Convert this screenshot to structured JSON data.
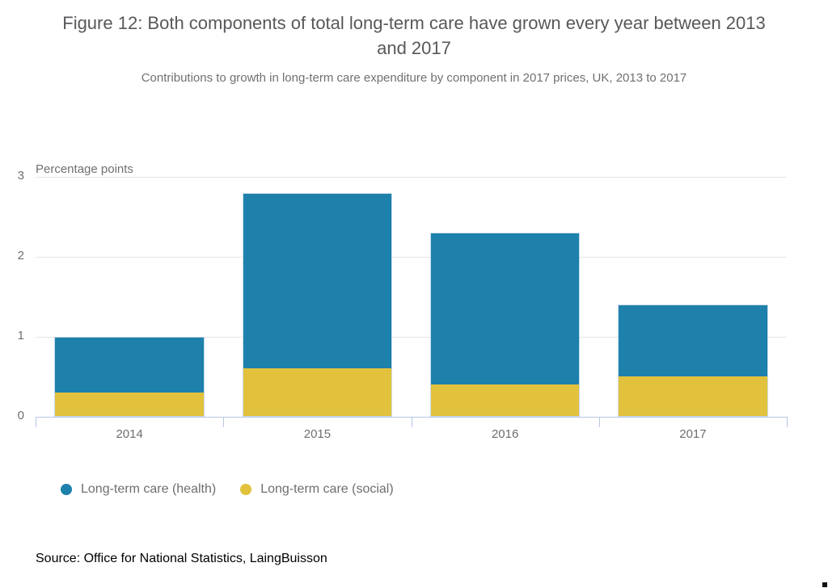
{
  "title": "Figure 12: Both components of total long-term care have grown every year between 2013 and 2017",
  "subtitle": "Contributions to growth in long-term care expenditure by component in 2017 prices, UK, 2013 to 2017",
  "axis_title": "Percentage points",
  "source": "Source: Office for National Statistics, LaingBuisson",
  "legend": [
    {
      "label": "Long-term care (health)",
      "color": "#1e81ac"
    },
    {
      "label": "Long-term care (social)",
      "color": "#e2c23c"
    }
  ],
  "colors": {
    "health_blue": "#1e81ac",
    "social_yellow": "#e2c23c",
    "gridline": "#e6e6e6",
    "axis_line": "#b7c5e0",
    "text_gray": "#6e6e71",
    "title_gray": "#57585b",
    "source_black": "#000000"
  },
  "chart_data": {
    "type": "bar",
    "stacked": true,
    "title": "Figure 12: Both components of total long-term care have grown every year between 2013 and 2017",
    "subtitle": "Contributions to growth in long-term care expenditure by component in 2017 prices, UK, 2013 to 2017",
    "categories": [
      "2014",
      "2015",
      "2016",
      "2017"
    ],
    "series": [
      {
        "name": "Long-term care (health)",
        "color": "#1e81ac",
        "values": [
          0.7,
          2.2,
          1.9,
          0.9
        ]
      },
      {
        "name": "Long-term care (social)",
        "color": "#e2c23c",
        "values": [
          0.3,
          0.6,
          0.4,
          0.5
        ]
      }
    ],
    "totals": [
      1.0,
      2.8,
      2.3,
      1.4
    ],
    "xlabel": "",
    "ylabel": "Percentage points",
    "yticks": [
      0,
      1,
      2,
      3
    ],
    "ylim": [
      0,
      3
    ],
    "grid": true,
    "legend_position": "bottom-left",
    "source": "Source: Office for National Statistics, LaingBuisson"
  }
}
